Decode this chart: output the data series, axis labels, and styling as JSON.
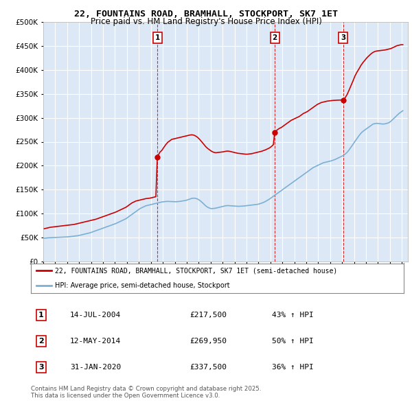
{
  "title": "22, FOUNTAINS ROAD, BRAMHALL, STOCKPORT, SK7 1ET",
  "subtitle": "Price paid vs. HM Land Registry's House Price Index (HPI)",
  "property_label": "22, FOUNTAINS ROAD, BRAMHALL, STOCKPORT, SK7 1ET (semi-detached house)",
  "hpi_label": "HPI: Average price, semi-detached house, Stockport",
  "footer": "Contains HM Land Registry data © Crown copyright and database right 2025.\nThis data is licensed under the Open Government Licence v3.0.",
  "property_color": "#cc0000",
  "hpi_color": "#7bafd4",
  "plot_bg_color": "#dce8f5",
  "ylim": [
    0,
    500000
  ],
  "yticks": [
    0,
    50000,
    100000,
    150000,
    200000,
    250000,
    300000,
    350000,
    400000,
    450000,
    500000
  ],
  "xlim_start": 1995.0,
  "xlim_end": 2025.5,
  "sales": [
    {
      "num": 1,
      "date_x": 2004.54,
      "price": 217500,
      "label": "14-JUL-2004",
      "pct": "43%"
    },
    {
      "num": 2,
      "date_x": 2014.36,
      "price": 269950,
      "label": "12-MAY-2014",
      "pct": "50%"
    },
    {
      "num": 3,
      "date_x": 2020.08,
      "price": 337500,
      "label": "31-JAN-2020",
      "pct": "36%"
    }
  ],
  "property_prices": [
    [
      1995.08,
      68000
    ],
    [
      1995.25,
      69000
    ],
    [
      1995.42,
      70000
    ],
    [
      1995.58,
      71000
    ],
    [
      1995.75,
      71500
    ],
    [
      1995.92,
      72000
    ],
    [
      1996.08,
      72500
    ],
    [
      1996.25,
      73000
    ],
    [
      1996.42,
      73500
    ],
    [
      1996.58,
      74000
    ],
    [
      1996.75,
      74500
    ],
    [
      1996.92,
      75000
    ],
    [
      1997.08,
      75500
    ],
    [
      1997.25,
      76000
    ],
    [
      1997.42,
      76500
    ],
    [
      1997.58,
      77000
    ],
    [
      1997.75,
      78000
    ],
    [
      1997.92,
      79000
    ],
    [
      1998.08,
      80000
    ],
    [
      1998.25,
      81000
    ],
    [
      1998.42,
      82000
    ],
    [
      1998.58,
      83000
    ],
    [
      1998.75,
      84000
    ],
    [
      1998.92,
      85000
    ],
    [
      1999.08,
      86000
    ],
    [
      1999.25,
      87000
    ],
    [
      1999.42,
      88000
    ],
    [
      1999.58,
      89500
    ],
    [
      1999.75,
      91000
    ],
    [
      1999.92,
      92500
    ],
    [
      2000.08,
      94000
    ],
    [
      2000.25,
      95500
    ],
    [
      2000.42,
      97000
    ],
    [
      2000.58,
      98500
    ],
    [
      2000.75,
      100000
    ],
    [
      2000.92,
      101500
    ],
    [
      2001.08,
      103000
    ],
    [
      2001.25,
      105000
    ],
    [
      2001.42,
      107000
    ],
    [
      2001.58,
      109000
    ],
    [
      2001.75,
      111000
    ],
    [
      2001.92,
      113000
    ],
    [
      2002.08,
      116000
    ],
    [
      2002.25,
      119000
    ],
    [
      2002.42,
      122000
    ],
    [
      2002.58,
      124000
    ],
    [
      2002.75,
      126000
    ],
    [
      2002.92,
      127000
    ],
    [
      2003.08,
      128000
    ],
    [
      2003.25,
      129000
    ],
    [
      2003.42,
      130000
    ],
    [
      2003.58,
      131000
    ],
    [
      2003.75,
      131500
    ],
    [
      2003.92,
      132000
    ],
    [
      2004.08,
      133000
    ],
    [
      2004.25,
      134000
    ],
    [
      2004.42,
      135000
    ],
    [
      2004.54,
      217500
    ],
    [
      2004.75,
      228000
    ],
    [
      2004.92,
      232000
    ],
    [
      2005.08,
      238000
    ],
    [
      2005.25,
      244000
    ],
    [
      2005.42,
      249000
    ],
    [
      2005.58,
      252000
    ],
    [
      2005.75,
      255000
    ],
    [
      2005.92,
      256000
    ],
    [
      2006.08,
      257000
    ],
    [
      2006.25,
      258000
    ],
    [
      2006.42,
      259000
    ],
    [
      2006.58,
      260000
    ],
    [
      2006.75,
      261000
    ],
    [
      2006.92,
      262000
    ],
    [
      2007.08,
      263000
    ],
    [
      2007.25,
      264000
    ],
    [
      2007.42,
      264500
    ],
    [
      2007.58,
      264000
    ],
    [
      2007.75,
      262000
    ],
    [
      2007.92,
      259000
    ],
    [
      2008.08,
      255000
    ],
    [
      2008.25,
      250000
    ],
    [
      2008.42,
      245000
    ],
    [
      2008.58,
      240000
    ],
    [
      2008.75,
      236000
    ],
    [
      2008.92,
      233000
    ],
    [
      2009.08,
      230000
    ],
    [
      2009.25,
      228000
    ],
    [
      2009.42,
      227000
    ],
    [
      2009.58,
      227500
    ],
    [
      2009.75,
      228000
    ],
    [
      2009.92,
      228500
    ],
    [
      2010.08,
      229000
    ],
    [
      2010.25,
      230000
    ],
    [
      2010.42,
      230500
    ],
    [
      2010.58,
      230000
    ],
    [
      2010.75,
      229000
    ],
    [
      2010.92,
      228000
    ],
    [
      2011.08,
      227000
    ],
    [
      2011.25,
      226000
    ],
    [
      2011.42,
      225500
    ],
    [
      2011.58,
      225000
    ],
    [
      2011.75,
      224500
    ],
    [
      2011.92,
      224000
    ],
    [
      2012.08,
      224000
    ],
    [
      2012.25,
      224500
    ],
    [
      2012.42,
      225000
    ],
    [
      2012.58,
      226000
    ],
    [
      2012.75,
      227000
    ],
    [
      2012.92,
      228000
    ],
    [
      2013.08,
      229000
    ],
    [
      2013.25,
      230000
    ],
    [
      2013.42,
      231500
    ],
    [
      2013.58,
      233000
    ],
    [
      2013.75,
      235000
    ],
    [
      2013.92,
      237000
    ],
    [
      2014.08,
      240000
    ],
    [
      2014.25,
      244000
    ],
    [
      2014.36,
      269950
    ],
    [
      2014.58,
      275000
    ],
    [
      2014.75,
      278000
    ],
    [
      2014.92,
      280000
    ],
    [
      2015.08,
      283000
    ],
    [
      2015.25,
      286000
    ],
    [
      2015.42,
      289000
    ],
    [
      2015.58,
      292000
    ],
    [
      2015.75,
      295000
    ],
    [
      2015.92,
      297000
    ],
    [
      2016.08,
      299000
    ],
    [
      2016.25,
      301000
    ],
    [
      2016.42,
      303000
    ],
    [
      2016.58,
      306000
    ],
    [
      2016.75,
      309000
    ],
    [
      2016.92,
      311000
    ],
    [
      2017.08,
      313000
    ],
    [
      2017.25,
      316000
    ],
    [
      2017.42,
      319000
    ],
    [
      2017.58,
      322000
    ],
    [
      2017.75,
      325000
    ],
    [
      2017.92,
      328000
    ],
    [
      2018.08,
      330000
    ],
    [
      2018.25,
      332000
    ],
    [
      2018.42,
      333000
    ],
    [
      2018.58,
      334000
    ],
    [
      2018.75,
      335000
    ],
    [
      2018.92,
      335500
    ],
    [
      2019.08,
      336000
    ],
    [
      2019.25,
      336500
    ],
    [
      2019.42,
      336800
    ],
    [
      2019.58,
      337000
    ],
    [
      2019.75,
      337200
    ],
    [
      2019.92,
      337400
    ],
    [
      2020.08,
      337500
    ],
    [
      2020.25,
      342000
    ],
    [
      2020.42,
      349000
    ],
    [
      2020.58,
      358000
    ],
    [
      2020.75,
      368000
    ],
    [
      2020.92,
      378000
    ],
    [
      2021.08,
      388000
    ],
    [
      2021.25,
      396000
    ],
    [
      2021.42,
      403000
    ],
    [
      2021.58,
      410000
    ],
    [
      2021.75,
      416000
    ],
    [
      2021.92,
      421000
    ],
    [
      2022.08,
      426000
    ],
    [
      2022.25,
      430000
    ],
    [
      2022.42,
      434000
    ],
    [
      2022.58,
      437000
    ],
    [
      2022.75,
      439000
    ],
    [
      2022.92,
      440000
    ],
    [
      2023.08,
      440500
    ],
    [
      2023.25,
      441000
    ],
    [
      2023.42,
      441500
    ],
    [
      2023.58,
      442000
    ],
    [
      2023.75,
      443000
    ],
    [
      2023.92,
      444000
    ],
    [
      2024.08,
      445000
    ],
    [
      2024.25,
      447000
    ],
    [
      2024.42,
      449000
    ],
    [
      2024.58,
      451000
    ],
    [
      2024.75,
      452000
    ],
    [
      2024.92,
      453000
    ],
    [
      2025.08,
      453000
    ]
  ],
  "hpi_prices": [
    [
      1995.08,
      48000
    ],
    [
      1995.25,
      48500
    ],
    [
      1995.42,
      49000
    ],
    [
      1995.58,
      49200
    ],
    [
      1995.75,
      49400
    ],
    [
      1995.92,
      49600
    ],
    [
      1996.08,
      49800
    ],
    [
      1996.25,
      50000
    ],
    [
      1996.42,
      50200
    ],
    [
      1996.58,
      50400
    ],
    [
      1996.75,
      50600
    ],
    [
      1996.92,
      50800
    ],
    [
      1997.08,
      51000
    ],
    [
      1997.25,
      51500
    ],
    [
      1997.42,
      52000
    ],
    [
      1997.58,
      52500
    ],
    [
      1997.75,
      53000
    ],
    [
      1997.92,
      53500
    ],
    [
      1998.08,
      54500
    ],
    [
      1998.25,
      55500
    ],
    [
      1998.42,
      56500
    ],
    [
      1998.58,
      57500
    ],
    [
      1998.75,
      58500
    ],
    [
      1998.92,
      59500
    ],
    [
      1999.08,
      61000
    ],
    [
      1999.25,
      62500
    ],
    [
      1999.42,
      64000
    ],
    [
      1999.58,
      65500
    ],
    [
      1999.75,
      67000
    ],
    [
      1999.92,
      68500
    ],
    [
      2000.08,
      70000
    ],
    [
      2000.25,
      71500
    ],
    [
      2000.42,
      73000
    ],
    [
      2000.58,
      74500
    ],
    [
      2000.75,
      76000
    ],
    [
      2000.92,
      77500
    ],
    [
      2001.08,
      79000
    ],
    [
      2001.25,
      81000
    ],
    [
      2001.42,
      83000
    ],
    [
      2001.58,
      85000
    ],
    [
      2001.75,
      87000
    ],
    [
      2001.92,
      89000
    ],
    [
      2002.08,
      92000
    ],
    [
      2002.25,
      95000
    ],
    [
      2002.42,
      98000
    ],
    [
      2002.58,
      101000
    ],
    [
      2002.75,
      104000
    ],
    [
      2002.92,
      107000
    ],
    [
      2003.08,
      110000
    ],
    [
      2003.25,
      112000
    ],
    [
      2003.42,
      114000
    ],
    [
      2003.58,
      116000
    ],
    [
      2003.75,
      117000
    ],
    [
      2003.92,
      118000
    ],
    [
      2004.08,
      119000
    ],
    [
      2004.25,
      120000
    ],
    [
      2004.42,
      121000
    ],
    [
      2004.58,
      122000
    ],
    [
      2004.75,
      123000
    ],
    [
      2004.92,
      124000
    ],
    [
      2005.08,
      124500
    ],
    [
      2005.25,
      125000
    ],
    [
      2005.42,
      125200
    ],
    [
      2005.58,
      125000
    ],
    [
      2005.75,
      124800
    ],
    [
      2005.92,
      124600
    ],
    [
      2006.08,
      124500
    ],
    [
      2006.25,
      124800
    ],
    [
      2006.42,
      125200
    ],
    [
      2006.58,
      125800
    ],
    [
      2006.75,
      126500
    ],
    [
      2006.92,
      127200
    ],
    [
      2007.08,
      128500
    ],
    [
      2007.25,
      130000
    ],
    [
      2007.42,
      131500
    ],
    [
      2007.58,
      132000
    ],
    [
      2007.75,
      131500
    ],
    [
      2007.92,
      130000
    ],
    [
      2008.08,
      127500
    ],
    [
      2008.25,
      124000
    ],
    [
      2008.42,
      120000
    ],
    [
      2008.58,
      116000
    ],
    [
      2008.75,
      113000
    ],
    [
      2008.92,
      111000
    ],
    [
      2009.08,
      110000
    ],
    [
      2009.25,
      110500
    ],
    [
      2009.42,
      111000
    ],
    [
      2009.58,
      112000
    ],
    [
      2009.75,
      113000
    ],
    [
      2009.92,
      114000
    ],
    [
      2010.08,
      115000
    ],
    [
      2010.25,
      116000
    ],
    [
      2010.42,
      116500
    ],
    [
      2010.58,
      116200
    ],
    [
      2010.75,
      115800
    ],
    [
      2010.92,
      115500
    ],
    [
      2011.08,
      115200
    ],
    [
      2011.25,
      115000
    ],
    [
      2011.42,
      115000
    ],
    [
      2011.58,
      115200
    ],
    [
      2011.75,
      115500
    ],
    [
      2011.92,
      116000
    ],
    [
      2012.08,
      116500
    ],
    [
      2012.25,
      117000
    ],
    [
      2012.42,
      117500
    ],
    [
      2012.58,
      118000
    ],
    [
      2012.75,
      118500
    ],
    [
      2012.92,
      119000
    ],
    [
      2013.08,
      120000
    ],
    [
      2013.25,
      121500
    ],
    [
      2013.42,
      123000
    ],
    [
      2013.58,
      125000
    ],
    [
      2013.75,
      127500
    ],
    [
      2013.92,
      130000
    ],
    [
      2014.08,
      133000
    ],
    [
      2014.25,
      136000
    ],
    [
      2014.42,
      139000
    ],
    [
      2014.58,
      142000
    ],
    [
      2014.75,
      145000
    ],
    [
      2014.92,
      148000
    ],
    [
      2015.08,
      151000
    ],
    [
      2015.25,
      154000
    ],
    [
      2015.42,
      157000
    ],
    [
      2015.58,
      160000
    ],
    [
      2015.75,
      163000
    ],
    [
      2015.92,
      166000
    ],
    [
      2016.08,
      169000
    ],
    [
      2016.25,
      172000
    ],
    [
      2016.42,
      175000
    ],
    [
      2016.58,
      178000
    ],
    [
      2016.75,
      181000
    ],
    [
      2016.92,
      184000
    ],
    [
      2017.08,
      187000
    ],
    [
      2017.25,
      190000
    ],
    [
      2017.42,
      193000
    ],
    [
      2017.58,
      196000
    ],
    [
      2017.75,
      198000
    ],
    [
      2017.92,
      200000
    ],
    [
      2018.08,
      202000
    ],
    [
      2018.25,
      204000
    ],
    [
      2018.42,
      206000
    ],
    [
      2018.58,
      207000
    ],
    [
      2018.75,
      208000
    ],
    [
      2018.92,
      209000
    ],
    [
      2019.08,
      210000
    ],
    [
      2019.25,
      211500
    ],
    [
      2019.42,
      213000
    ],
    [
      2019.58,
      215000
    ],
    [
      2019.75,
      217000
    ],
    [
      2019.92,
      219000
    ],
    [
      2020.08,
      221000
    ],
    [
      2020.25,
      224000
    ],
    [
      2020.42,
      228000
    ],
    [
      2020.58,
      233000
    ],
    [
      2020.75,
      239000
    ],
    [
      2020.92,
      245000
    ],
    [
      2021.08,
      251000
    ],
    [
      2021.25,
      257000
    ],
    [
      2021.42,
      263000
    ],
    [
      2021.58,
      268000
    ],
    [
      2021.75,
      272000
    ],
    [
      2021.92,
      275000
    ],
    [
      2022.08,
      278000
    ],
    [
      2022.25,
      281000
    ],
    [
      2022.42,
      284000
    ],
    [
      2022.58,
      287000
    ],
    [
      2022.75,
      288000
    ],
    [
      2022.92,
      288500
    ],
    [
      2023.08,
      288000
    ],
    [
      2023.25,
      287500
    ],
    [
      2023.42,
      287000
    ],
    [
      2023.58,
      287500
    ],
    [
      2023.75,
      288500
    ],
    [
      2023.92,
      290000
    ],
    [
      2024.08,
      293000
    ],
    [
      2024.25,
      297000
    ],
    [
      2024.42,
      301000
    ],
    [
      2024.58,
      305000
    ],
    [
      2024.75,
      309000
    ],
    [
      2024.92,
      312000
    ],
    [
      2025.08,
      315000
    ]
  ]
}
